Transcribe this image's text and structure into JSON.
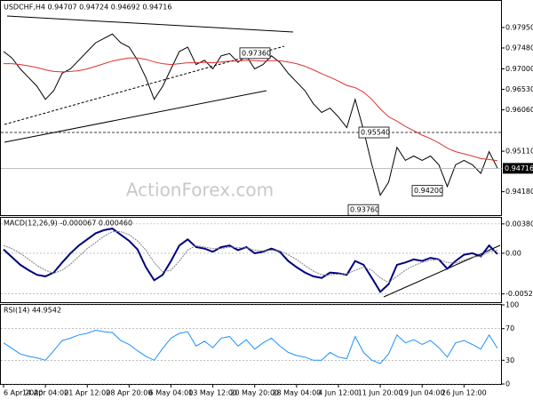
{
  "chart_data": [
    {
      "type": "line",
      "title": "USDCHF,H4 0.94707 0.94724 0.94692 0.94716",
      "watermark": "ActionForex.com",
      "categories": [
        "6 Apr 2020",
        null,
        null,
        null,
        null,
        "14 Apr 04:00",
        null,
        null,
        null,
        null,
        "21 Apr 12:00",
        null,
        null,
        null,
        null,
        "28 Apr 20:00",
        null,
        null,
        null,
        null,
        "6 May 04:00",
        null,
        null,
        null,
        null,
        "13 May 12:00",
        null,
        null,
        null,
        null,
        "20 May 20:00",
        null,
        null,
        null,
        null,
        "28 May 04:00",
        null,
        null,
        null,
        null,
        "4 Jun 12:00",
        null,
        null,
        null,
        null,
        "11 Jun 20:00",
        null,
        null,
        null,
        null,
        "19 Jun 04:00",
        null,
        null,
        null,
        null,
        "26 Jun 12:00",
        null,
        null,
        null,
        null
      ],
      "series": [
        {
          "name": "USDCHF",
          "color": "#000000",
          "values": [
            0.974,
            0.9725,
            0.97,
            0.968,
            0.966,
            0.963,
            0.965,
            0.969,
            0.97,
            0.972,
            0.974,
            0.976,
            0.977,
            0.978,
            0.976,
            0.975,
            0.972,
            0.968,
            0.963,
            0.966,
            0.97,
            0.974,
            0.975,
            0.971,
            0.972,
            0.97,
            0.973,
            0.9735,
            0.9715,
            0.973,
            0.97,
            0.971,
            0.973,
            0.9715,
            0.969,
            0.967,
            0.965,
            0.962,
            0.96,
            0.961,
            0.959,
            0.9565,
            0.963,
            0.956,
            0.948,
            0.941,
            0.944,
            0.952,
            0.949,
            0.95,
            0.949,
            0.95,
            0.948,
            0.943,
            0.948,
            0.949,
            0.948,
            0.946,
            0.951,
            0.9472
          ]
        },
        {
          "name": "MA",
          "color": "#e03030",
          "values": [
            0.9712,
            0.9712,
            0.971,
            0.9707,
            0.9703,
            0.9698,
            0.9694,
            0.9693,
            0.9694,
            0.9696,
            0.97,
            0.9706,
            0.9712,
            0.9718,
            0.9722,
            0.9725,
            0.9725,
            0.9722,
            0.9716,
            0.9712,
            0.971,
            0.9712,
            0.9714,
            0.9714,
            0.9715,
            0.9714,
            0.9716,
            0.9718,
            0.9718,
            0.972,
            0.9719,
            0.9718,
            0.9719,
            0.9719,
            0.9716,
            0.9712,
            0.9706,
            0.9698,
            0.9689,
            0.9681,
            0.9672,
            0.9662,
            0.9657,
            0.9647,
            0.963,
            0.9608,
            0.959,
            0.958,
            0.9568,
            0.9558,
            0.9548,
            0.954,
            0.953,
            0.9518,
            0.951,
            0.9505,
            0.95,
            0.9494,
            0.9492,
            0.9489
          ]
        }
      ],
      "ylim": [
        0.93642,
        0.98296
      ],
      "yticks": [
        {
          "value": 0.9795,
          "label": "0.97950"
        },
        {
          "value": 0.9748,
          "label": "0.97480"
        },
        {
          "value": 0.97,
          "label": "0.97000"
        },
        {
          "value": 0.9653,
          "label": "0.96530"
        },
        {
          "value": 0.9606,
          "label": "0.96060"
        },
        {
          "value": 0.9511,
          "label": "0.95110"
        },
        {
          "value": 0.9418,
          "label": "0.94180"
        }
      ],
      "annotations": [
        {
          "value": 0.9736,
          "label": "0.97360"
        },
        {
          "value": 0.9554,
          "label": "0.95540"
        },
        {
          "value": 0.942,
          "label": "0.94200"
        },
        {
          "value": 0.9376,
          "label": "0.93760"
        }
      ],
      "last_price": {
        "value": 0.94716,
        "label": "0.94716"
      }
    },
    {
      "type": "line",
      "title": "MACD(12,26,9) -0.000067 0.000460",
      "series": [
        {
          "name": "MACD",
          "color": "#000080",
          "values": [
            0.0005,
            -0.0005,
            -0.0015,
            -0.0022,
            -0.0028,
            -0.003,
            -0.0025,
            -0.0012,
            0.0,
            0.001,
            0.0018,
            0.0026,
            0.003,
            0.0032,
            0.0024,
            0.0016,
            0.0005,
            -0.0018,
            -0.0035,
            -0.0028,
            -0.001,
            0.001,
            0.0018,
            0.0008,
            0.0006,
            0.0002,
            0.0008,
            0.001,
            0.0004,
            0.0008,
            0.0,
            0.0002,
            0.0006,
            0.0002,
            -0.001,
            -0.0018,
            -0.0025,
            -0.003,
            -0.0032,
            -0.0025,
            -0.0026,
            -0.0028,
            -0.001,
            -0.0015,
            -0.0032,
            -0.005,
            -0.004,
            -0.0015,
            -0.0012,
            -0.0008,
            -0.001,
            -0.0006,
            -0.0008,
            -0.002,
            -0.001,
            -0.0002,
            0.0,
            -0.0004,
            0.001,
            -0.0001
          ]
        },
        {
          "name": "Signal",
          "color": "#808080",
          "values": [
            0.001,
            0.0006,
            0.0,
            -0.0008,
            -0.0016,
            -0.0022,
            -0.0026,
            -0.0022,
            -0.0014,
            -0.0004,
            0.0006,
            0.0014,
            0.0022,
            0.0028,
            0.0028,
            0.0024,
            0.0016,
            0.0004,
            -0.0012,
            -0.0024,
            -0.0022,
            -0.001,
            0.0004,
            0.001,
            0.0008,
            0.0006,
            0.0006,
            0.0008,
            0.0007,
            0.0007,
            0.0004,
            0.0003,
            0.0004,
            0.0003,
            -0.0002,
            -0.0008,
            -0.0016,
            -0.0023,
            -0.0028,
            -0.0028,
            -0.0027,
            -0.0027,
            -0.0022,
            -0.0018,
            -0.0022,
            -0.0032,
            -0.0038,
            -0.003,
            -0.0022,
            -0.0016,
            -0.0012,
            -0.0009,
            -0.0008,
            -0.0012,
            -0.0013,
            -0.0009,
            -0.0005,
            -0.0004,
            0.0002,
            0.0004
          ]
        }
      ],
      "ylim": [
        -0.00635,
        0.0046
      ],
      "yticks": [
        0.003808,
        {
          "value": 0,
          "label": "0.00"
        },
        -0.005272
      ]
    },
    {
      "type": "line",
      "title": "RSI(14) 44.9542",
      "series": [
        {
          "name": "RSI",
          "color": "#1e90ff",
          "values": [
            52,
            45,
            38,
            35,
            33,
            30,
            42,
            55,
            58,
            62,
            64,
            68,
            66,
            65,
            55,
            50,
            42,
            35,
            30,
            45,
            58,
            64,
            66,
            48,
            54,
            46,
            58,
            60,
            48,
            56,
            44,
            52,
            58,
            48,
            40,
            36,
            34,
            30,
            30,
            40,
            34,
            32,
            60,
            40,
            30,
            26,
            38,
            62,
            52,
            56,
            50,
            55,
            46,
            34,
            52,
            55,
            50,
            44,
            62,
            45
          ]
        }
      ],
      "ylim": [
        0,
        100
      ],
      "yticks": [
        100,
        70,
        30,
        0
      ]
    }
  ]
}
